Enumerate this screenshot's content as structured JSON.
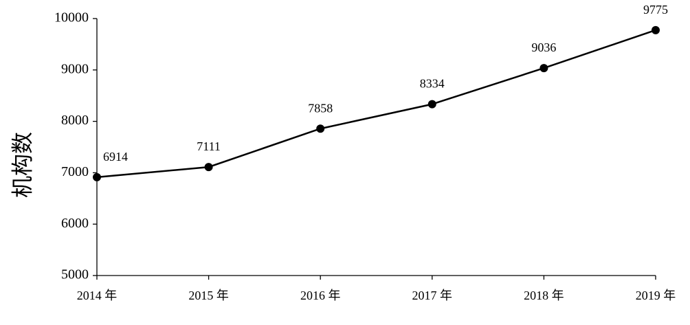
{
  "chart_data": {
    "type": "line",
    "y_label": "机构数",
    "categories": [
      "2014 年",
      "2015 年",
      "2016 年",
      "2017 年",
      "2018 年",
      "2019 年"
    ],
    "series": [
      {
        "name": "机构数",
        "color": "#000000",
        "values": [
          6914,
          7111,
          7858,
          8334,
          9036,
          9775
        ]
      }
    ],
    "ylim": [
      5000,
      10000
    ],
    "yticks": [
      5000,
      6000,
      7000,
      8000,
      9000,
      10000
    ],
    "grid": false
  }
}
